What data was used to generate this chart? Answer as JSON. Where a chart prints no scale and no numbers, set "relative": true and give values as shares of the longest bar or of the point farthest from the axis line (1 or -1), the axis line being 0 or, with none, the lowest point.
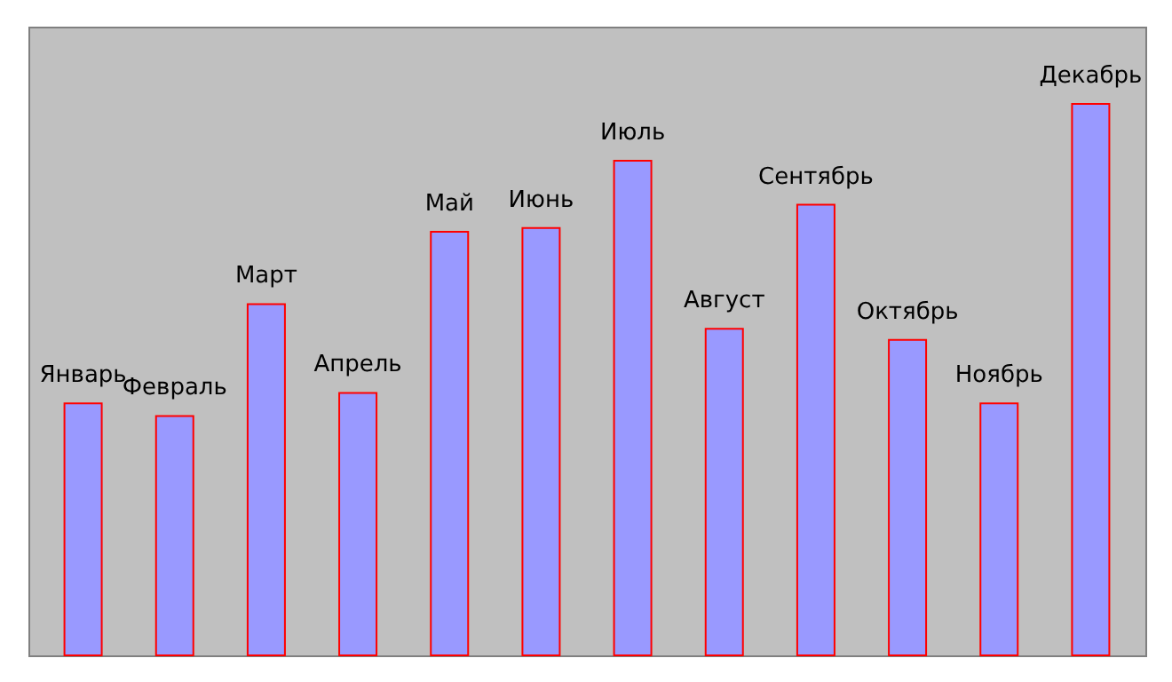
{
  "chart_data": {
    "type": "bar",
    "relative": true,
    "categories": [
      "Январь",
      "Февраль",
      "Март",
      "Апрель",
      "Май",
      "Июнь",
      "Июль",
      "Август",
      "Сентябрь",
      "Октябрь",
      "Ноябрь",
      "Декабрь"
    ],
    "values": [
      0.457,
      0.434,
      0.637,
      0.476,
      0.768,
      0.775,
      0.897,
      0.592,
      0.817,
      0.572,
      0.457,
      1
    ],
    "color": "#9999ff"
  }
}
